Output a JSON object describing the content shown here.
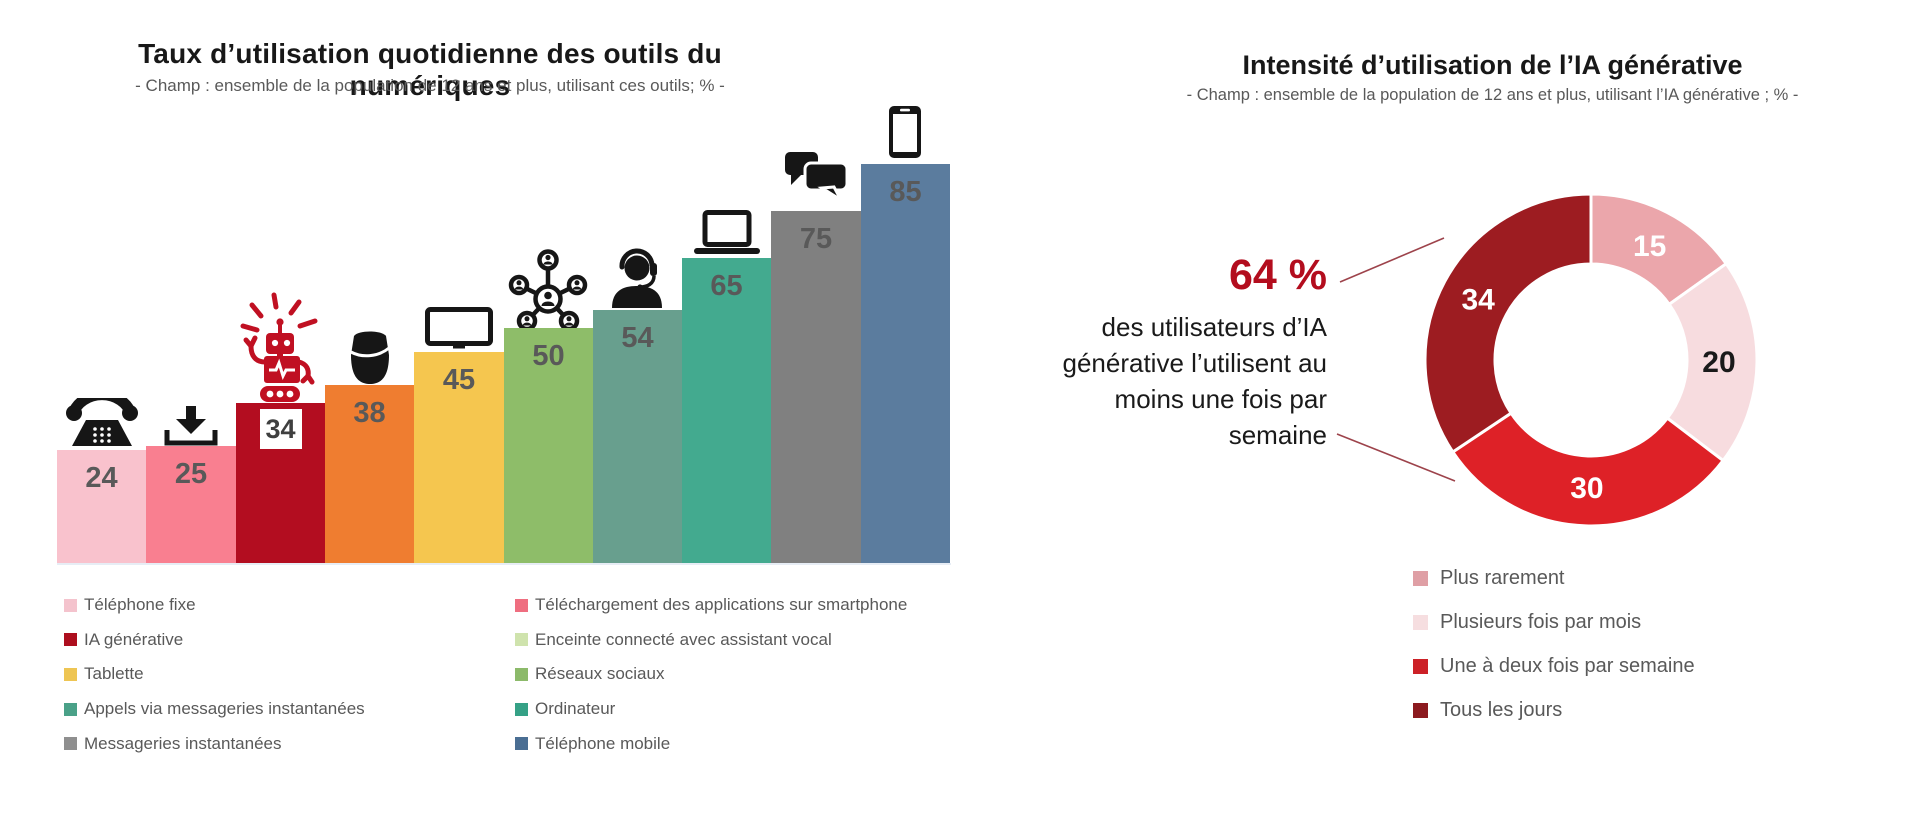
{
  "chart_data": [
    {
      "type": "bar",
      "title": "Taux d’utilisation quotidienne des outils du numériques",
      "subtitle": "- Champ : ensemble de la population de 12 ans et plus, utilisant ces outils; % -",
      "ylim": [
        0,
        100
      ],
      "grid": false,
      "value_label_color": "#595959",
      "bars": [
        {
          "label": "Téléphone fixe",
          "value": 24,
          "color": "#f9c2cd",
          "icon": "landline-phone"
        },
        {
          "label": "Téléchargement des applications sur smartphone",
          "value": 25,
          "color": "#f97f90",
          "icon": "download"
        },
        {
          "label": "IA générative",
          "value": 34,
          "color": "#b30d20",
          "icon": "robot",
          "value_boxed": true
        },
        {
          "label": "Enceinte connecté avec assistant vocal",
          "value": 38,
          "color": "#ef7d30",
          "icon": "smart-speaker"
        },
        {
          "label": "Tablette",
          "value": 45,
          "color": "#f5c64f",
          "icon": "tablet"
        },
        {
          "label": "Réseaux sociaux",
          "value": 50,
          "color": "#8ebd69",
          "icon": "social-network"
        },
        {
          "label": "Appels via messageries instantanées",
          "value": 54,
          "color": "#689f8e",
          "icon": "headset-person"
        },
        {
          "label": "Ordinateur",
          "value": 65,
          "color": "#43aa8f",
          "icon": "laptop"
        },
        {
          "label": "Messageries instantanées",
          "value": 75,
          "color": "#808080",
          "icon": "chat-bubbles"
        },
        {
          "label": "Téléphone mobile",
          "value": 85,
          "color": "#5b7c9e",
          "icon": "smartphone"
        }
      ],
      "legend_position": "bottom-two-columns",
      "legend": {
        "column1": [
          {
            "label": "Téléphone fixe",
            "color": "#f4c3cd"
          },
          {
            "label": "IA générative",
            "color": "#ad0e1e"
          },
          {
            "label": "Tablette",
            "color": "#eec553"
          },
          {
            "label": "Appels via messageries instantanées",
            "color": "#4aa188"
          },
          {
            "label": "Messageries instantanées",
            "color": "#8f8f8f"
          }
        ],
        "column2": [
          {
            "label": "Téléchargement des applications sur smartphone",
            "color": "#ef6e80"
          },
          {
            "label": "Enceinte connecté avec assistant vocal",
            "color": "#cfe3ad"
          },
          {
            "label": "Réseaux sociaux",
            "color": "#8cba6a"
          },
          {
            "label": "Ordinateur",
            "color": "#35a186"
          },
          {
            "label": "Téléphone mobile",
            "color": "#4a6e93"
          }
        ]
      }
    },
    {
      "type": "pie",
      "variant": "donut",
      "title": "Intensité d’utilisation de l’IA générative",
      "subtitle": "- Champ : ensemble de la population de 12 ans et plus, utilisant l’IA générative ; % -",
      "start": "top-clockwise",
      "slices": [
        {
          "label": "Plus rarement",
          "value": 15,
          "color": "#eba6ab",
          "label_color": "#ffffff"
        },
        {
          "label": "Plusieurs fois par mois",
          "value": 20,
          "color": "#f7dcdf",
          "label_color": "#1a1a1a"
        },
        {
          "label": "Une à deux fois par semaine",
          "value": 30,
          "color": "#de2127",
          "label_color": "#ffffff"
        },
        {
          "label": "Tous les jours",
          "value": 34,
          "color": "#9d1c21",
          "label_color": "#ffffff"
        }
      ],
      "legend_position": "bottom-left-column",
      "legend": [
        {
          "label": "Plus rarement",
          "color": "#df9fa5"
        },
        {
          "label": "Plusieurs fois par mois",
          "color": "#f6dee0"
        },
        {
          "label": "Une à deux fois par semaine",
          "color": "#cc2127"
        },
        {
          "label": "Tous les jours",
          "color": "#8c1a1f"
        }
      ],
      "annotation": {
        "highlight": "64 %",
        "highlight_color": "#b30d1e",
        "text": "des utilisateurs d’IA\ngénérative l’utilisent au\nmoins une fois par\nsemaine"
      }
    }
  ]
}
